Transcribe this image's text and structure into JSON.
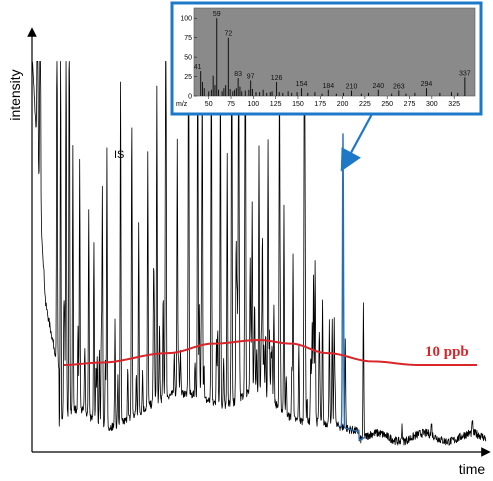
{
  "chart_data": {
    "type": "line",
    "title": "",
    "xlabel": "time",
    "ylabel": "intensity",
    "annotations": {
      "internal_standard": "IS",
      "threshold": "10 ppb"
    },
    "colors": {
      "trace": "#000000",
      "highlight": "#2a6db4",
      "threshold": "#d8262b",
      "inset_border": "#1e78c8",
      "inset_bg": "#8a8a8a"
    },
    "threshold_curve": [
      [
        0.07,
        0.71
      ],
      [
        0.15,
        0.72
      ],
      [
        0.3,
        0.76
      ],
      [
        0.4,
        0.8
      ],
      [
        0.5,
        0.815
      ],
      [
        0.57,
        0.8
      ],
      [
        0.65,
        0.76
      ],
      [
        0.75,
        0.725
      ],
      [
        0.85,
        0.71
      ],
      [
        0.98,
        0.71
      ]
    ],
    "mass_spectrum": {
      "type": "bar",
      "x_axis_label": "m/z",
      "x_ticks": [
        "50",
        "75",
        "100",
        "125",
        "150",
        "175",
        "200",
        "225",
        "250",
        "275",
        "300",
        "325"
      ],
      "y_ticks": [
        "100",
        "75",
        "50",
        "25",
        "0"
      ],
      "xlim": [
        38,
        345
      ],
      "ylim": [
        0,
        108
      ],
      "labeled_peaks": [
        {
          "mz": 41,
          "value": 32,
          "label": "41"
        },
        {
          "mz": 59,
          "value": 100,
          "label": "59"
        },
        {
          "mz": 72,
          "value": 75,
          "label": "72"
        },
        {
          "mz": 83,
          "value": 23,
          "label": "83"
        },
        {
          "mz": 97,
          "value": 20,
          "label": "97"
        },
        {
          "mz": 126,
          "value": 18,
          "label": "126"
        },
        {
          "mz": 154,
          "value": 10,
          "label": "154"
        },
        {
          "mz": 184,
          "value": 8,
          "label": "184"
        },
        {
          "mz": 210,
          "value": 7,
          "label": "210"
        },
        {
          "mz": 240,
          "value": 8,
          "label": "240"
        },
        {
          "mz": 263,
          "value": 7,
          "label": "263"
        },
        {
          "mz": 294,
          "value": 10,
          "label": "294"
        },
        {
          "mz": 337,
          "value": 24,
          "label": "337"
        }
      ],
      "minor_peaks": [
        [
          43,
          18
        ],
        [
          45,
          10
        ],
        [
          50,
          6
        ],
        [
          53,
          8
        ],
        [
          55,
          26
        ],
        [
          57,
          14
        ],
        [
          61,
          8
        ],
        [
          65,
          6
        ],
        [
          67,
          10
        ],
        [
          69,
          14
        ],
        [
          74,
          9
        ],
        [
          77,
          6
        ],
        [
          79,
          8
        ],
        [
          81,
          10
        ],
        [
          85,
          12
        ],
        [
          87,
          6
        ],
        [
          91,
          7
        ],
        [
          95,
          8
        ],
        [
          99,
          9
        ],
        [
          103,
          5
        ],
        [
          107,
          5
        ],
        [
          111,
          8
        ],
        [
          115,
          4
        ],
        [
          119,
          5
        ],
        [
          121,
          6
        ],
        [
          129,
          5
        ],
        [
          133,
          4
        ],
        [
          139,
          6
        ],
        [
          143,
          4
        ],
        [
          149,
          5
        ],
        [
          161,
          4
        ],
        [
          169,
          5
        ],
        [
          177,
          3
        ],
        [
          193,
          3
        ],
        [
          201,
          4
        ],
        [
          221,
          3
        ],
        [
          229,
          4
        ],
        [
          255,
          3
        ],
        [
          271,
          3
        ],
        [
          281,
          4
        ],
        [
          309,
          4
        ],
        [
          322,
          5
        ],
        [
          329,
          4
        ]
      ]
    }
  }
}
